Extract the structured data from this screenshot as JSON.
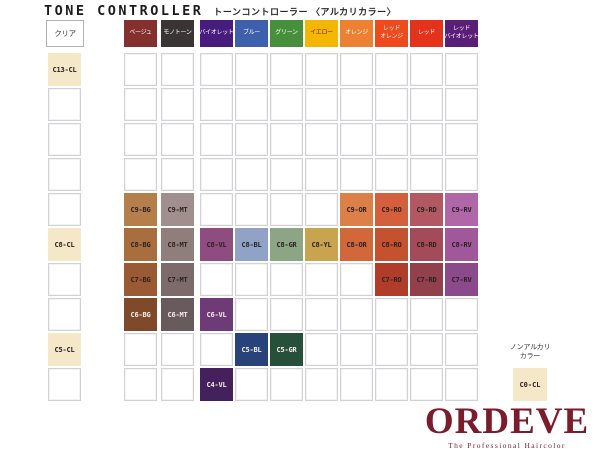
{
  "header": {
    "title": "TONE CONTROLLER",
    "subtitle": "トーンコントローラー 〈アルカリカラー〉"
  },
  "columns": [
    {
      "key": "CL",
      "label_lines": [
        "クリア"
      ],
      "bg": "#ffffff",
      "fg": "#333333",
      "outlined": true
    },
    {
      "key": "BG",
      "label_lines": [
        "ベージュ"
      ],
      "bg": "#84302c",
      "fg": "#ffffff"
    },
    {
      "key": "MT",
      "label_lines": [
        "モノトーン"
      ],
      "bg": "#3b3434",
      "fg": "#ffffff"
    },
    {
      "key": "VL",
      "label_lines": [
        "バイオレット"
      ],
      "bg": "#471c7e",
      "fg": "#ffffff"
    },
    {
      "key": "BL",
      "label_lines": [
        "ブルー"
      ],
      "bg": "#3c5fae",
      "fg": "#ffffff"
    },
    {
      "key": "GR",
      "label_lines": [
        "グリーン"
      ],
      "bg": "#478f3c",
      "fg": "#ffffff"
    },
    {
      "key": "YL",
      "label_lines": [
        "イエロー"
      ],
      "bg": "#f3b700",
      "fg": "#7a2020"
    },
    {
      "key": "OR",
      "label_lines": [
        "オレンジ"
      ],
      "bg": "#ef8033",
      "fg": "#ffffff"
    },
    {
      "key": "RO",
      "label_lines": [
        "レッド",
        "オレンジ"
      ],
      "bg": "#ee4a1c",
      "fg": "#ffffff"
    },
    {
      "key": "RD",
      "label_lines": [
        "レッド"
      ],
      "bg": "#e5331b",
      "fg": "#ffffff"
    },
    {
      "key": "RV",
      "label_lines": [
        "レッド",
        "バイオレット"
      ],
      "bg": "#5a1d78",
      "fg": "#ffffff"
    }
  ],
  "grid": {
    "row_count": 10,
    "cells": [
      {
        "code": "C13-CL",
        "col": 0,
        "row": 0,
        "bg": "#f4e8c8",
        "fg": "#2a2222"
      },
      {
        "code": "C9-BG",
        "col": 1,
        "row": 4,
        "bg": "#b57f4c",
        "fg": "#2a2222"
      },
      {
        "code": "C9-MT",
        "col": 2,
        "row": 4,
        "bg": "#a18f8c",
        "fg": "#2a2222"
      },
      {
        "code": "C9-OR",
        "col": 7,
        "row": 4,
        "bg": "#dd7f49",
        "fg": "#2a2222"
      },
      {
        "code": "C9-RO",
        "col": 8,
        "row": 4,
        "bg": "#d45f3d",
        "fg": "#2a2222"
      },
      {
        "code": "C9-RD",
        "col": 9,
        "row": 4,
        "bg": "#b15862",
        "fg": "#2a2222"
      },
      {
        "code": "C9-RV",
        "col": 10,
        "row": 4,
        "bg": "#b067a8",
        "fg": "#2a2222"
      },
      {
        "code": "C8-CL",
        "col": 0,
        "row": 5,
        "bg": "#f4e8c8",
        "fg": "#2a2222"
      },
      {
        "code": "C8-BG",
        "col": 1,
        "row": 5,
        "bg": "#a86e3e",
        "fg": "#2a2222"
      },
      {
        "code": "C8-MT",
        "col": 2,
        "row": 5,
        "bg": "#8f7e7b",
        "fg": "#2a2222"
      },
      {
        "code": "C8-VL",
        "col": 3,
        "row": 5,
        "bg": "#8e4c80",
        "fg": "#2a2222"
      },
      {
        "code": "C8-BL",
        "col": 4,
        "row": 5,
        "bg": "#90a3c7",
        "fg": "#2a2222"
      },
      {
        "code": "C8-GR",
        "col": 5,
        "row": 5,
        "bg": "#8ca585",
        "fg": "#2a2222"
      },
      {
        "code": "C8-YL",
        "col": 6,
        "row": 5,
        "bg": "#c8a44f",
        "fg": "#2a2222"
      },
      {
        "code": "C8-OR",
        "col": 7,
        "row": 5,
        "bg": "#d2683a",
        "fg": "#2a2222"
      },
      {
        "code": "C8-RO",
        "col": 8,
        "row": 5,
        "bg": "#c5522f",
        "fg": "#2a2222"
      },
      {
        "code": "C8-RD",
        "col": 9,
        "row": 5,
        "bg": "#a34b58",
        "fg": "#2a2222"
      },
      {
        "code": "C8-RV",
        "col": 10,
        "row": 5,
        "bg": "#a1589b",
        "fg": "#2a2222"
      },
      {
        "code": "C7-BG",
        "col": 1,
        "row": 6,
        "bg": "#9a5a33",
        "fg": "#2a2222"
      },
      {
        "code": "C7-MT",
        "col": 2,
        "row": 6,
        "bg": "#7c6b6a",
        "fg": "#2a2222"
      },
      {
        "code": "C7-RO",
        "col": 8,
        "row": 6,
        "bg": "#b13c2a",
        "fg": "#2a2222"
      },
      {
        "code": "C7-RD",
        "col": 9,
        "row": 6,
        "bg": "#93404d",
        "fg": "#2a2222"
      },
      {
        "code": "C7-RV",
        "col": 10,
        "row": 6,
        "bg": "#8a4a8b",
        "fg": "#2a2222"
      },
      {
        "code": "C6-BG",
        "col": 1,
        "row": 7,
        "bg": "#7e4a29",
        "fg": "#f3efec"
      },
      {
        "code": "C6-MT",
        "col": 2,
        "row": 7,
        "bg": "#695a5d",
        "fg": "#f3efec"
      },
      {
        "code": "C6-VL",
        "col": 3,
        "row": 7,
        "bg": "#6e3a77",
        "fg": "#f3efec"
      },
      {
        "code": "C5-CL",
        "col": 0,
        "row": 8,
        "bg": "#f4e8c8",
        "fg": "#2a2222"
      },
      {
        "code": "C5-BL",
        "col": 4,
        "row": 8,
        "bg": "#28437a",
        "fg": "#f3efec"
      },
      {
        "code": "C5-GR",
        "col": 5,
        "row": 8,
        "bg": "#27503b",
        "fg": "#f3efec"
      },
      {
        "code": "C4-VL",
        "col": 3,
        "row": 9,
        "bg": "#44215c",
        "fg": "#f3efec"
      }
    ]
  },
  "non_alkali": {
    "label_line1": "ノンアルカリ",
    "label_line2": "カラー",
    "cell": {
      "code": "C0-CL",
      "bg": "#f4e8c8",
      "fg": "#2a2222"
    }
  },
  "logo": {
    "name": "ORDEVE",
    "tagline": "The Professional Haircolor",
    "color": "#7b1b2b"
  }
}
